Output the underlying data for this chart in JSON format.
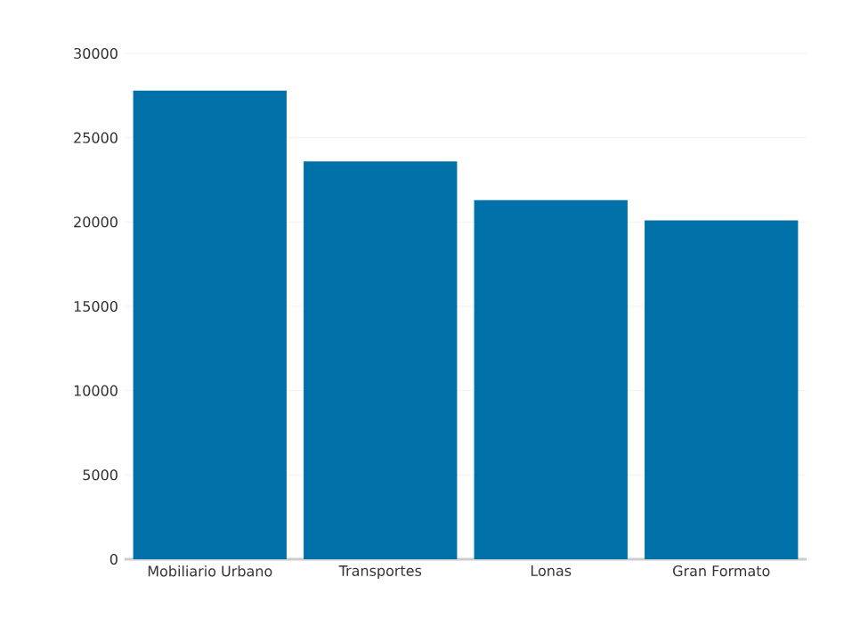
{
  "chart_data": {
    "type": "bar",
    "categories": [
      "Mobiliario Urbano",
      "Transportes",
      "Lonas",
      "Gran Formato"
    ],
    "values": [
      27800,
      23600,
      21300,
      20100
    ],
    "color": "#0070a8",
    "ylim": [
      0,
      30000
    ],
    "yticks": [
      0,
      5000,
      10000,
      15000,
      20000,
      25000,
      30000
    ],
    "grid": "y"
  }
}
